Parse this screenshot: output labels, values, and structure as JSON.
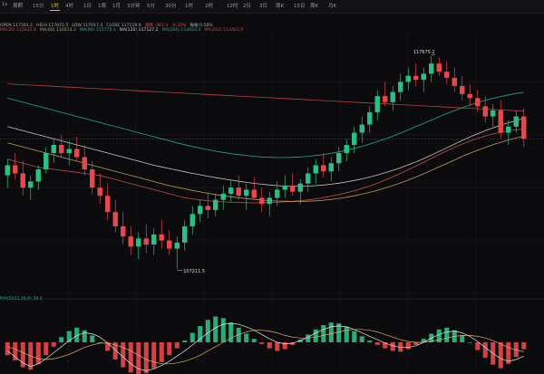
{
  "toolbar": {
    "items": [
      "1s",
      "周期",
      "15分",
      "1时",
      "4时",
      "1日",
      "1周",
      "1月",
      "3分钟",
      "5分",
      "30分",
      "1时",
      "2时",
      "12时",
      "2日",
      "3日",
      "周K",
      "15日",
      "周K",
      "月K"
    ],
    "active_index": 3
  },
  "legend_main": [
    {
      "text": "OPEN 117501.2",
      "color": "#b0b0b0"
    },
    {
      "text": "HIGH 117672.5",
      "color": "#b0b0b0"
    },
    {
      "text": "LOW 117017.4",
      "color": "#b0b0b0"
    },
    {
      "text": "CLOSE 117119.9",
      "color": "#b0b0b0"
    },
    {
      "text": "涨跌 -381.3",
      "color": "#e04a4a"
    },
    {
      "text": "-0.32%",
      "color": "#e04a4a"
    },
    {
      "text": "振幅 0.56%",
      "color": "#b0b0b0"
    }
  ],
  "legend_ma": [
    {
      "text": "MA(30) 115932.8",
      "color": "#e05a5a"
    },
    {
      "text": "MA(60) 116024.3",
      "color": "#d9b36c"
    },
    {
      "text": "MA(90) 115770.1",
      "color": "#39c0a0"
    },
    {
      "text": "MA(120) 117127.2",
      "color": "#e6e6e6"
    },
    {
      "text": "MA(200) 114064.4",
      "color": "#2fbfa4"
    },
    {
      "text": "MA(260) 114463.9",
      "color": "#d0504c"
    }
  ],
  "macd_label": {
    "text": "MACD(12,26,9) 28.3",
    "color": "#39c0a0"
  },
  "chart_data": {
    "type": "candlestick",
    "title": "",
    "price_labels": {
      "high": 117675.2,
      "low": 107211.5
    },
    "ylim": [
      106000,
      119000
    ],
    "candles": [
      [
        111800,
        112600,
        111200,
        112300
      ],
      [
        112300,
        112900,
        111600,
        111900
      ],
      [
        111900,
        112500,
        110800,
        111200
      ],
      [
        111200,
        111800,
        110600,
        111500
      ],
      [
        111500,
        112300,
        111100,
        112100
      ],
      [
        112100,
        113200,
        111900,
        112900
      ],
      [
        112900,
        113600,
        112400,
        113300
      ],
      [
        113300,
        113800,
        112700,
        112900
      ],
      [
        112900,
        113500,
        112300,
        113100
      ],
      [
        113100,
        113700,
        112500,
        112700
      ],
      [
        112700,
        113300,
        111800,
        112100
      ],
      [
        112100,
        112500,
        110900,
        111200
      ],
      [
        111200,
        111900,
        110400,
        110800
      ],
      [
        110800,
        111400,
        109600,
        110000
      ],
      [
        110000,
        110600,
        109000,
        109300
      ],
      [
        109300,
        110000,
        108400,
        108800
      ],
      [
        108800,
        109300,
        107900,
        108300
      ],
      [
        108300,
        109000,
        107700,
        108700
      ],
      [
        108700,
        109400,
        108000,
        108400
      ],
      [
        108400,
        109200,
        107900,
        108900
      ],
      [
        108900,
        109600,
        108200,
        108600
      ],
      [
        108600,
        109100,
        107900,
        108200
      ],
      [
        108200,
        108800,
        107211.5,
        108500
      ],
      [
        108500,
        109600,
        108100,
        109300
      ],
      [
        109300,
        110300,
        108900,
        109900
      ],
      [
        109900,
        110600,
        109500,
        110300
      ],
      [
        110300,
        111000,
        109700,
        110100
      ],
      [
        110100,
        110900,
        109800,
        110600
      ],
      [
        110600,
        111300,
        110100,
        110900
      ],
      [
        110900,
        111600,
        110500,
        111200
      ],
      [
        111200,
        111800,
        110600,
        110800
      ],
      [
        110800,
        111400,
        110100,
        111100
      ],
      [
        111100,
        111700,
        110600,
        110700
      ],
      [
        110700,
        111200,
        110000,
        110400
      ],
      [
        110400,
        111000,
        109800,
        110700
      ],
      [
        110700,
        111500,
        110300,
        111100
      ],
      [
        111100,
        111800,
        110700,
        111300
      ],
      [
        111300,
        111900,
        110800,
        111000
      ],
      [
        111000,
        111600,
        110400,
        111400
      ],
      [
        111400,
        112200,
        111000,
        111900
      ],
      [
        111900,
        112600,
        111400,
        112300
      ],
      [
        112300,
        112900,
        111700,
        112000
      ],
      [
        112000,
        112700,
        111500,
        112400
      ],
      [
        112400,
        113200,
        112000,
        112900
      ],
      [
        112900,
        113600,
        112500,
        113300
      ],
      [
        113300,
        114200,
        112900,
        113900
      ],
      [
        113900,
        114700,
        113400,
        114300
      ],
      [
        114300,
        115200,
        113900,
        114900
      ],
      [
        114900,
        116000,
        114500,
        115700
      ],
      [
        115700,
        116400,
        115200,
        115400
      ],
      [
        115400,
        116200,
        115000,
        115900
      ],
      [
        115900,
        116800,
        115500,
        116400
      ],
      [
        116400,
        117100,
        116000,
        116700
      ],
      [
        116700,
        117300,
        116200,
        116500
      ],
      [
        116500,
        117100,
        115900,
        116800
      ],
      [
        116800,
        117675.2,
        116400,
        117300
      ],
      [
        117300,
        117600,
        116700,
        116900
      ],
      [
        116900,
        117400,
        116300,
        116600
      ],
      [
        116600,
        117100,
        115900,
        116200
      ],
      [
        116200,
        116700,
        115500,
        115800
      ],
      [
        115800,
        116300,
        115200,
        115600
      ],
      [
        115600,
        116000,
        114900,
        115200
      ],
      [
        115200,
        115700,
        114400,
        114700
      ],
      [
        114700,
        115300,
        114200,
        115000
      ],
      [
        115000,
        115500,
        113600,
        113900
      ],
      [
        113900,
        114500,
        113300,
        114200
      ],
      [
        114200,
        115000,
        113900,
        114700
      ],
      [
        114700,
        115100,
        113200,
        113600
      ]
    ],
    "ma_series": [
      {
        "name": "MA(30)",
        "color": "#e05a5a",
        "values": [
          112600,
          112500,
          112400,
          112300,
          112200,
          112150,
          112100,
          112050,
          112000,
          111950,
          111900,
          111850,
          111800,
          111700,
          111600,
          111500,
          111400,
          111300,
          111200,
          111100,
          111000,
          110900,
          110800,
          110700,
          110650,
          110600,
          110560,
          110520,
          110500,
          110480,
          110470,
          110460,
          110450,
          110460,
          110470,
          110480,
          110500,
          110530,
          110560,
          110600,
          110650,
          110710,
          110780,
          110860,
          110950,
          111050,
          111160,
          111280,
          111420,
          111570,
          111730,
          111900,
          112080,
          112260,
          112450,
          112640,
          112830,
          113010,
          113180,
          113340,
          113490,
          113620,
          113740,
          113840,
          113920,
          113990,
          114040,
          114080
        ]
      },
      {
        "name": "MA(60)",
        "color": "#d9b36c",
        "values": [
          113400,
          113300,
          113200,
          113100,
          113000,
          112900,
          112800,
          112700,
          112600,
          112500,
          112400,
          112300,
          112200,
          112100,
          112000,
          111900,
          111800,
          111700,
          111600,
          111500,
          111400,
          111300,
          111220,
          111140,
          111060,
          110990,
          110920,
          110860,
          110800,
          110750,
          110700,
          110660,
          110620,
          110590,
          110560,
          110540,
          110530,
          110520,
          110520,
          110530,
          110550,
          110580,
          110620,
          110670,
          110730,
          110800,
          110880,
          110970,
          111070,
          111180,
          111300,
          111430,
          111570,
          111720,
          111880,
          112050,
          112220,
          112390,
          112560,
          112730,
          112890,
          113040,
          113180,
          113310,
          113430,
          113540,
          113640,
          113730
        ]
      },
      {
        "name": "MA(120)",
        "color": "#e6e6e6",
        "values": [
          114200,
          114100,
          114000,
          113900,
          113800,
          113700,
          113600,
          113500,
          113400,
          113300,
          113200,
          113100,
          113000,
          112900,
          112800,
          112700,
          112600,
          112500,
          112400,
          112300,
          112220,
          112140,
          112060,
          111980,
          111900,
          111830,
          111760,
          111690,
          111630,
          111570,
          111510,
          111460,
          111410,
          111370,
          111330,
          111300,
          111280,
          111270,
          111270,
          111280,
          111300,
          111330,
          111370,
          111420,
          111480,
          111550,
          111630,
          111720,
          111820,
          111930,
          112050,
          112180,
          112320,
          112470,
          112630,
          112800,
          112980,
          113160,
          113340,
          113520,
          113690,
          113850,
          114000,
          114140,
          114270,
          114390,
          114500,
          114600
        ]
      },
      {
        "name": "MA(200)",
        "color": "#2fbfa4",
        "values": [
          115600,
          115500,
          115400,
          115300,
          115200,
          115100,
          115000,
          114900,
          114800,
          114700,
          114600,
          114500,
          114400,
          114300,
          114200,
          114100,
          114000,
          113900,
          113800,
          113700,
          113600,
          113500,
          113400,
          113310,
          113220,
          113140,
          113060,
          112990,
          112930,
          112870,
          112820,
          112780,
          112740,
          112710,
          112690,
          112680,
          112680,
          112690,
          112710,
          112740,
          112780,
          112830,
          112890,
          112960,
          113040,
          113130,
          113230,
          113340,
          113460,
          113590,
          113730,
          113880,
          114040,
          114200,
          114360,
          114520,
          114680,
          114840,
          114990,
          115130,
          115260,
          115380,
          115490,
          115590,
          115680,
          115760,
          115830,
          115890
        ]
      },
      {
        "name": "MA(260)",
        "color": "#d0504c",
        "values": [
          116300,
          116280,
          116260,
          116240,
          116220,
          116200,
          116180,
          116160,
          116140,
          116120,
          116100,
          116080,
          116060,
          116040,
          116020,
          116000,
          115980,
          115960,
          115940,
          115920,
          115900,
          115880,
          115860,
          115840,
          115820,
          115800,
          115780,
          115760,
          115740,
          115720,
          115700,
          115680,
          115660,
          115640,
          115620,
          115600,
          115580,
          115560,
          115540,
          115520,
          115500,
          115480,
          115460,
          115440,
          115420,
          115400,
          115380,
          115360,
          115340,
          115320,
          115300,
          115280,
          115260,
          115240,
          115220,
          115200,
          115180,
          115160,
          115140,
          115120,
          115100,
          115080,
          115060,
          115040,
          115020,
          115000,
          114980,
          114960
        ]
      }
    ],
    "macd_histogram": [
      -30,
      -42,
      -58,
      -64,
      -50,
      -30,
      -10,
      12,
      26,
      34,
      28,
      16,
      0,
      -20,
      -40,
      -58,
      -70,
      -78,
      -72,
      -60,
      -46,
      -30,
      -14,
      4,
      22,
      38,
      52,
      60,
      56,
      46,
      34,
      20,
      8,
      -4,
      -14,
      -20,
      -16,
      -6,
      6,
      18,
      30,
      40,
      46,
      44,
      36,
      26,
      14,
      4,
      -6,
      -14,
      -20,
      -22,
      -16,
      -6,
      8,
      20,
      30,
      34,
      28,
      16,
      0,
      -18,
      -36,
      -52,
      -60,
      -50,
      -34,
      -16
    ],
    "macd_dif": [
      -20,
      -34,
      -48,
      -56,
      -50,
      -38,
      -24,
      -10,
      4,
      16,
      22,
      20,
      12,
      -2,
      -18,
      -34,
      -50,
      -62,
      -66,
      -62,
      -54,
      -44,
      -32,
      -20,
      -6,
      8,
      22,
      34,
      42,
      44,
      42,
      36,
      28,
      18,
      8,
      0,
      -4,
      -2,
      4,
      12,
      22,
      30,
      36,
      38,
      36,
      30,
      22,
      14,
      6,
      -2,
      -8,
      -12,
      -12,
      -8,
      0,
      10,
      18,
      24,
      26,
      22,
      14,
      2,
      -12,
      -26,
      -38,
      -44,
      -40,
      -32
    ],
    "macd_dea": [
      -10,
      -16,
      -24,
      -32,
      -38,
      -40,
      -38,
      -34,
      -28,
      -20,
      -12,
      -6,
      -2,
      -2,
      -6,
      -12,
      -20,
      -30,
      -40,
      -46,
      -50,
      -50,
      -48,
      -44,
      -38,
      -30,
      -20,
      -10,
      0,
      10,
      18,
      24,
      28,
      28,
      26,
      22,
      16,
      12,
      10,
      10,
      12,
      16,
      20,
      24,
      28,
      30,
      30,
      28,
      24,
      18,
      12,
      6,
      2,
      0,
      0,
      2,
      6,
      10,
      14,
      16,
      16,
      14,
      10,
      4,
      -4,
      -12,
      -18,
      -22
    ]
  }
}
